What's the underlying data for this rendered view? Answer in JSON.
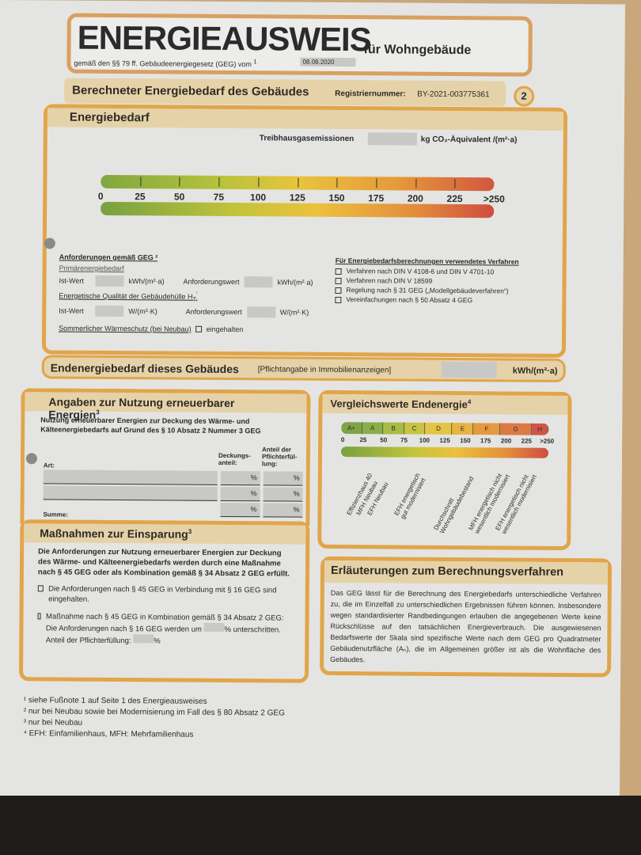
{
  "title": {
    "main": "ENERGIEAUSWEIS",
    "sub": "für Wohngebäude",
    "law": "gemäß den §§ 79 ff. Gebäudeenergiegesetz (GEG) vom ",
    "law_sup": "1",
    "date": "08.08.2020"
  },
  "section": {
    "title": "Berechneter Energiebedarf des Gebäudes",
    "reg_label": "Registriernummer:",
    "reg_value": "BY-2021-003775361",
    "page": "2"
  },
  "energiebedarf": {
    "title": "Energiebedarf",
    "ghg_label": "Treibhausgasemissionen",
    "ghg_unit": "kg CO₂-Äquivalent /(m²·a)",
    "scale": [
      "0",
      "25",
      "50",
      "75",
      "100",
      "125",
      "150",
      "175",
      "200",
      "225",
      ">250"
    ],
    "req": {
      "title": "Anforderungen gemäß GEG ²",
      "primary": "Primärenergiebedarf",
      "ist": "Ist-Wert",
      "unit1": "kWh/(m²·a)",
      "anf": "Anforderungswert",
      "quality": "Energetische Qualität der Gebäudehülle H",
      "quality_sub": "T",
      "quality_sup": "'",
      "unit2": "W/(m²·K)",
      "summer": "Sommerlicher Wärmeschutz (bei Neubau)",
      "summer_cb": "eingehalten"
    },
    "methods": {
      "title": "Für Energiebedarfsberechnungen verwendetes Verfahren",
      "items": [
        "Verfahren nach DIN V 4108-6 und DIN V 4701-10",
        "Verfahren nach DIN V 18599",
        "Regelung nach § 31 GEG („Modellgebäudeverfahren“)",
        "Vereinfachungen nach § 50 Absatz 4 GEG"
      ]
    }
  },
  "endenergie": {
    "title": "Endenergiebedarf dieses Gebäudes",
    "note": "[Pflichtangabe in Immobilienanzeigen]",
    "unit": "kWh/(m²·a)"
  },
  "renewable": {
    "title": "Angaben zur Nutzung erneuerbarer Energien",
    "sup": "3",
    "desc": "Nutzung erneuerbarer Energien zur Deckung des Wärme- und Kälteenergiebedarfs auf Grund des § 10 Absatz 2 Nummer 3 GEG",
    "col_art": "Art:",
    "col_deck": "Deckungs-anteil:",
    "col_pflicht": "Anteil der Pflichterfül-lung:",
    "pct": "%",
    "sum": "Summe:"
  },
  "measures": {
    "title": "Maßnahmen zur Einsparung",
    "sup": "3",
    "desc": "Die Anforderungen zur Nutzung erneuerbarer Energien zur Deckung des Wärme- und Kälteenergiebedarfs werden durch eine Maßnahme nach § 45 GEG oder als Kombination gemäß § 34 Absatz 2 GEG erfüllt.",
    "opt1": "Die Anforderungen nach § 45 GEG in Verbindung mit § 16 GEG sind eingehalten.",
    "opt2a": "Maßnahme nach § 45 GEG in Kombination gemäß § 34 Absatz 2 GEG: Die Anforderungen nach § 16 GEG werden um",
    "opt2b": "unterschritten. Anteil der Pflichterfüllung:",
    "pct": "%"
  },
  "compare": {
    "title": "Vergleichswerte Endenergie",
    "sup": "4",
    "classes": [
      "A+",
      "A",
      "B",
      "C",
      "D",
      "E",
      "F",
      "G",
      "H"
    ],
    "scale": [
      "0",
      "25",
      "50",
      "75",
      "100",
      "125",
      "150",
      "175",
      "200",
      "225",
      ">250"
    ],
    "refs": [
      "Effizienzhaus 40",
      "MFH Neubau",
      "EFH Neubau",
      "EFH energetisch\ngut modernisiert",
      "Durchschnitt\nWohngebäudebestand",
      "MFH energetisch nicht\nwesentlich modernisiert",
      "EFH energetisch nicht\nwesentlich modernisiert"
    ]
  },
  "explain": {
    "title": "Erläuterungen zum Berechnungsverfahren",
    "text": "Das GEG lässt für die Berechnung des Energiebedarfs unterschiedliche Verfahren zu, die im Einzelfall zu unterschiedlichen Ergebnissen führen können. Insbesondere wegen standardisierter Randbedingungen erlauben die angegebenen Werte keine Rückschlüsse auf den tatsächlichen Energieverbrauch. Die ausgewiesenen Bedarfswerte der Skala sind spezifische Werte nach dem GEG pro Quadratmeter Gebäudenutzfläche (Aₙ), die im Allgemeinen größer ist als die Wohnfläche des Gebäudes."
  },
  "footnotes": [
    "¹ siehe Fußnote 1 auf Seite 1 des Energieausweises",
    "² nur bei Neubau sowie bei Modernisierung im Fall des § 80 Absatz 2 GEG",
    "³ nur bei Neubau",
    "⁴ EFH: Einfamilienhaus, MFH: Mehrfamilienhaus"
  ]
}
